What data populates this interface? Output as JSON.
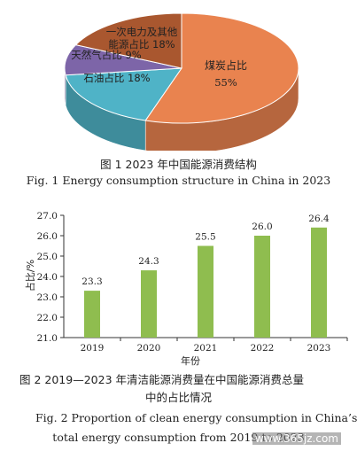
{
  "chart_data": [
    {
      "type": "pie",
      "slices": [
        {
          "label": "煤炭占比",
          "value": 55,
          "value_label": "55%",
          "color": "#e9834f"
        },
        {
          "label": "石油占比 18%",
          "value": 18,
          "color": "#4fb3c7"
        },
        {
          "label": "天然气占比 9%",
          "value": 9,
          "color": "#7d65a8"
        },
        {
          "label_line1": "一次电力及其他",
          "label_line2": "能源占比 18%",
          "value": 18,
          "color": "#a9572f"
        }
      ],
      "caption_zh": "图 1  2023 年中国能源消费结构",
      "caption_en": "Fig. 1  Energy consumption structure in China in 2023"
    },
    {
      "type": "bar",
      "categories": [
        "2019",
        "2020",
        "2021",
        "2022",
        "2023"
      ],
      "values": [
        23.3,
        24.3,
        25.5,
        26.0,
        26.4
      ],
      "value_labels": [
        "23.3",
        "24.3",
        "25.5",
        "26.0",
        "26.4"
      ],
      "bar_color": "#8fbd4f",
      "ylim": [
        21.0,
        27.0
      ],
      "yticks": [
        "21.0",
        "22.0",
        "23.0",
        "24.0",
        "25.0",
        "26.0",
        "27.0"
      ],
      "xlabel": "年份",
      "ylabel": "占比/%",
      "caption_zh_line1": "图 2  2019—2023 年清洁能源消费量在中国能源消费总量",
      "caption_zh_line2": "中的占比情况",
      "caption_en_line1": "Fig. 2  Proportion of clean energy consumption in China’s",
      "caption_en_line2": "total energy consumption from 2019 to 2023"
    }
  ],
  "watermark": "www.365jz.com"
}
